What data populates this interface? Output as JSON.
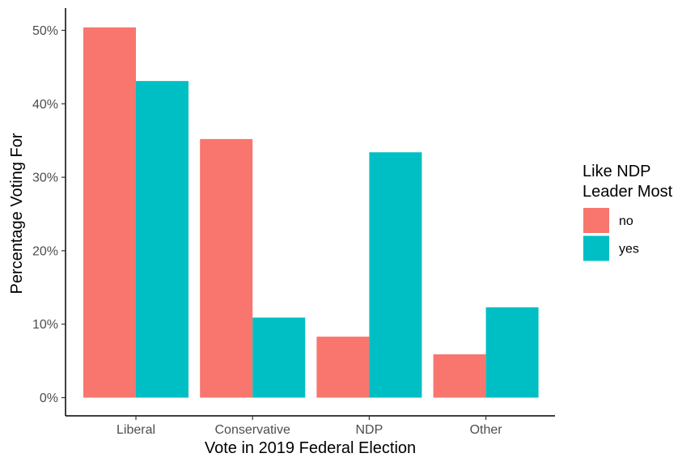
{
  "chart_data": {
    "type": "bar",
    "categories": [
      "Liberal",
      "Conservative",
      "NDP",
      "Other"
    ],
    "series": [
      {
        "name": "no",
        "values": [
          50.4,
          35.2,
          8.3,
          5.9
        ],
        "color": "#F8766D"
      },
      {
        "name": "yes",
        "values": [
          43.1,
          10.9,
          33.4,
          12.3
        ],
        "color": "#00BFC4"
      }
    ],
    "title": "",
    "xlabel": "Vote in 2019 Federal Election",
    "ylabel": "Percentage Voting For",
    "ylim": [
      0,
      52
    ],
    "yticks": [
      0,
      10,
      20,
      30,
      40,
      50
    ],
    "ytick_labels": [
      "0%",
      "10%",
      "20%",
      "30%",
      "40%",
      "50%"
    ],
    "grid": false,
    "legend": {
      "title_lines": [
        "Like NDP",
        "Leader Most"
      ],
      "placement": "right",
      "entries": [
        "no",
        "yes"
      ]
    },
    "colors": {
      "no": "#F8766D",
      "yes": "#00BFC4"
    }
  }
}
